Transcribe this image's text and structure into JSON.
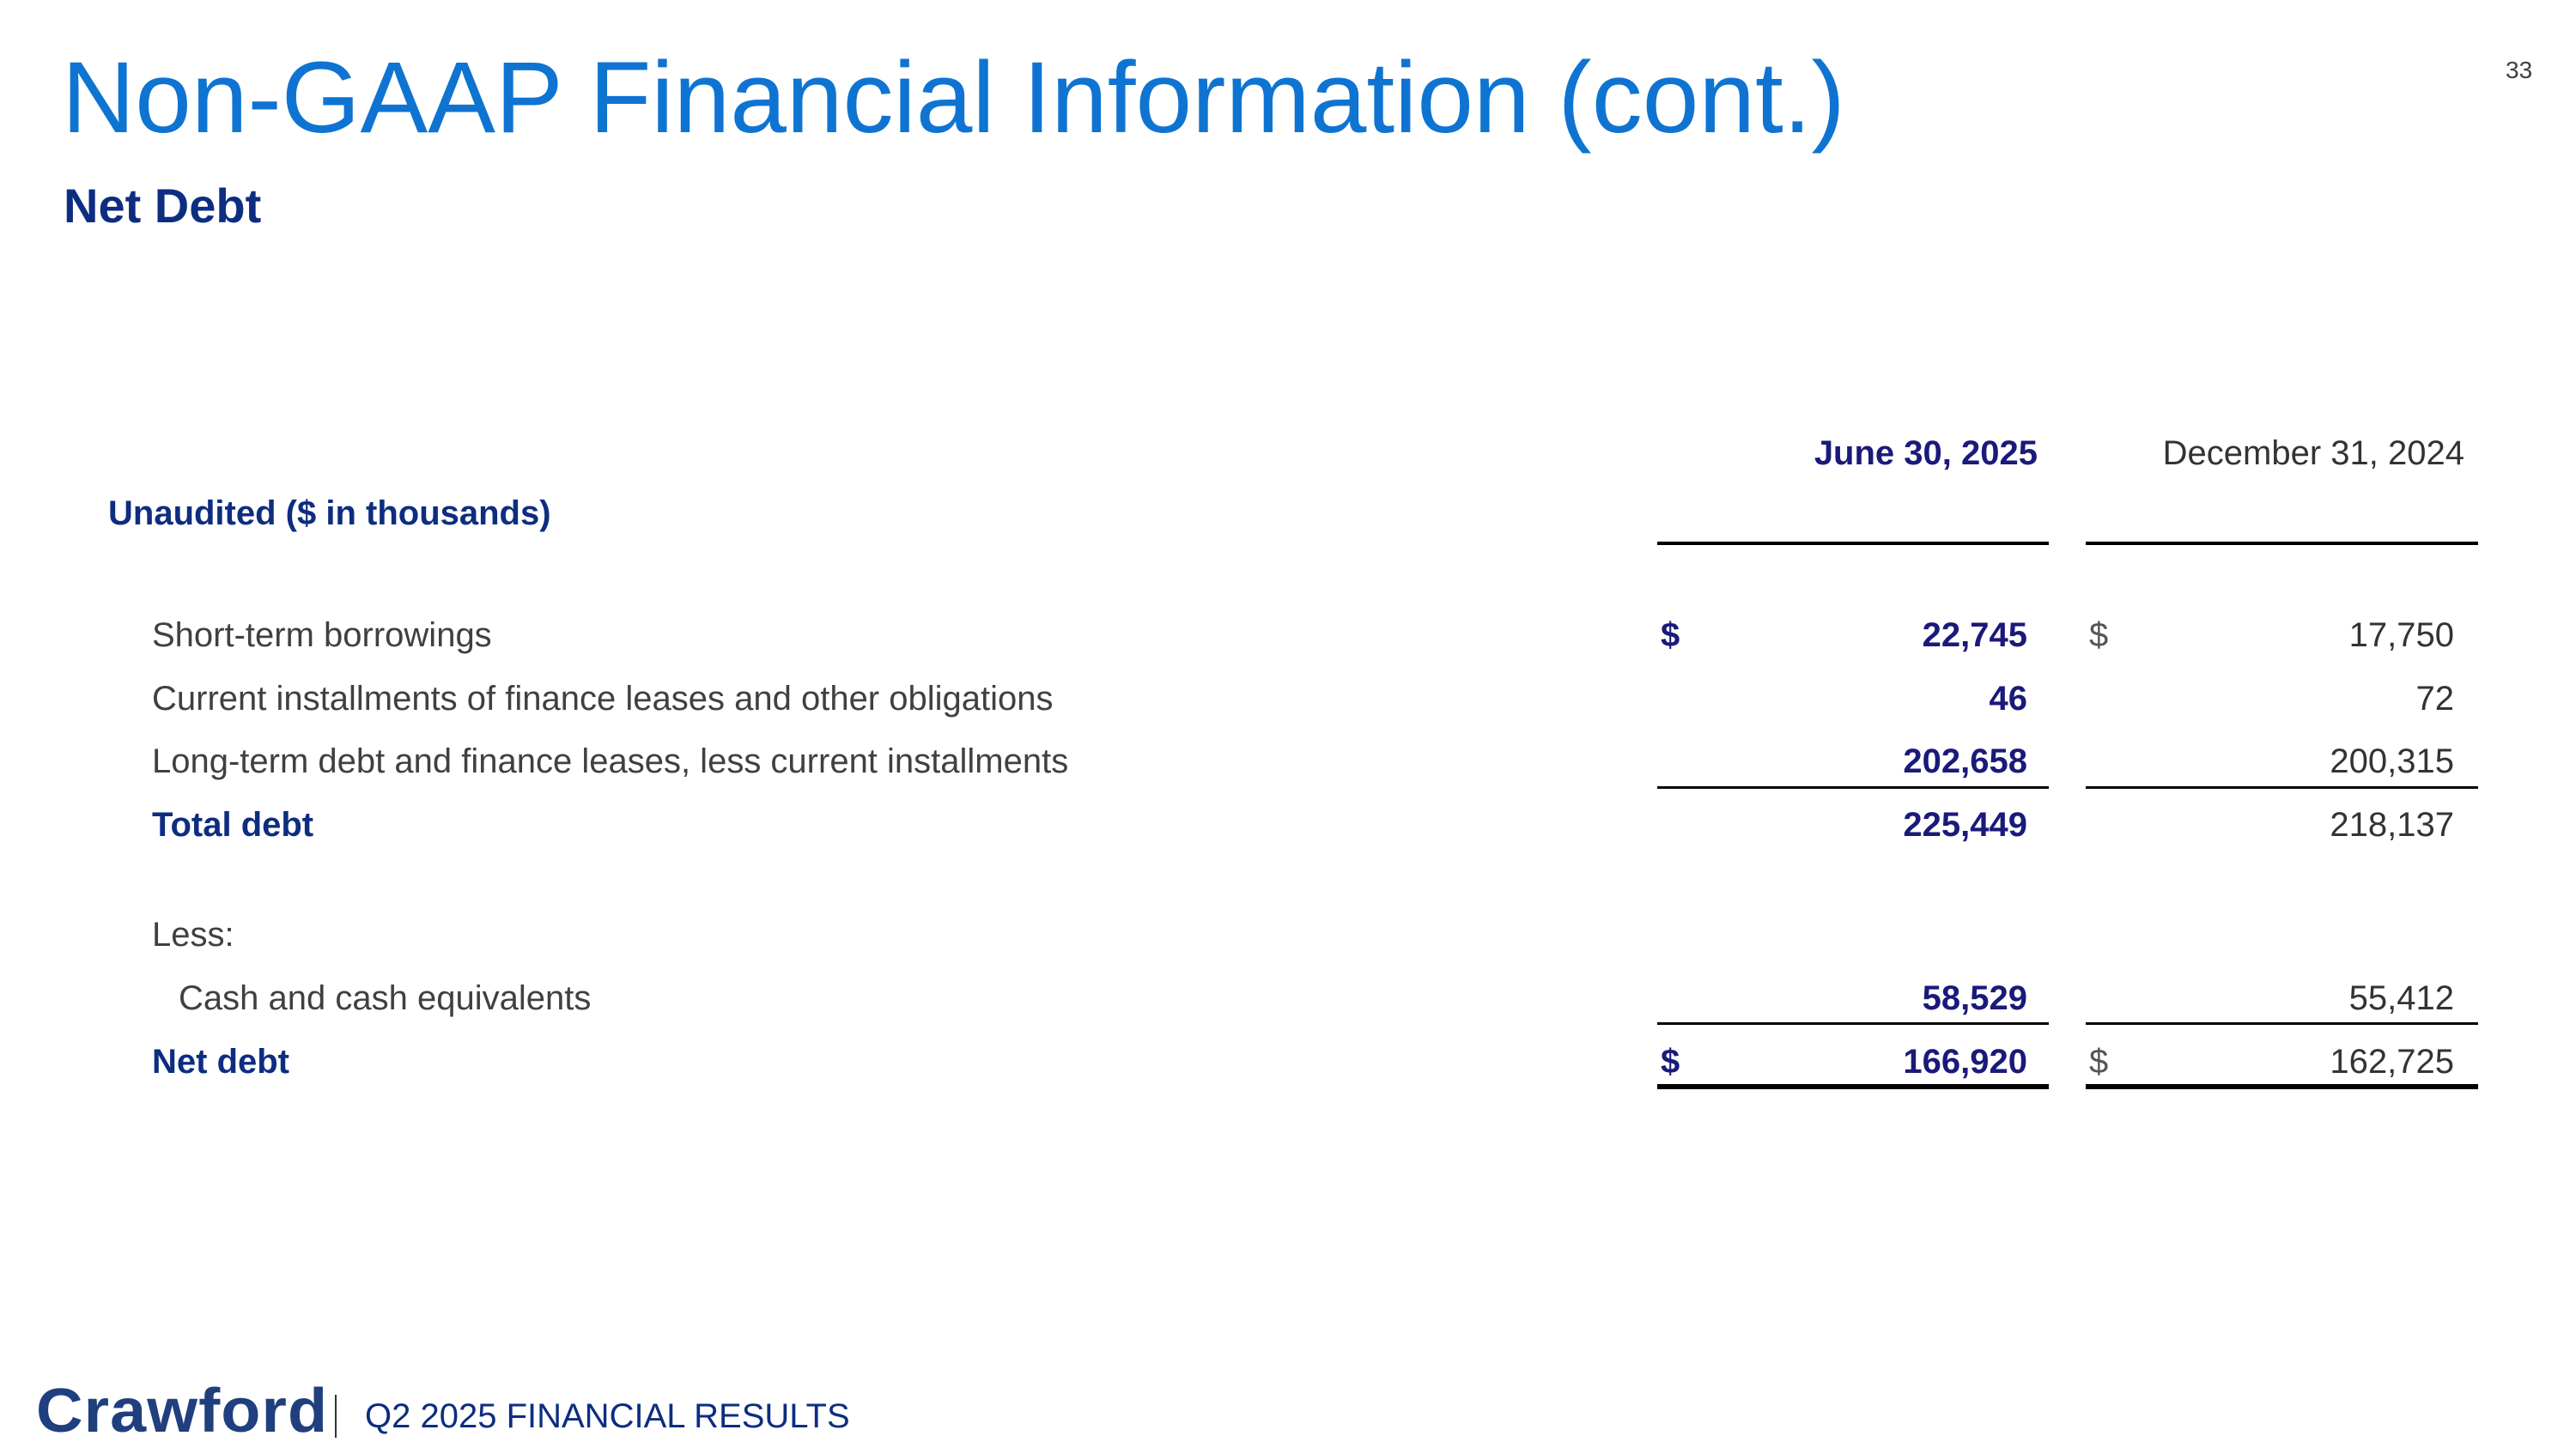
{
  "header": {
    "title": "Non-GAAP Financial Information (cont.)",
    "subtitle": "Net Debt",
    "page_number": "33"
  },
  "table": {
    "caption": "Unaudited ($ in thousands)",
    "columns": [
      "June 30, 2025",
      "December 31, 2024"
    ],
    "rows": [
      {
        "label": "Short-term borrowings",
        "dollar1": "$",
        "v1": "22,745",
        "dollar2": "$",
        "v2": "17,750"
      },
      {
        "label": "Current installments of finance leases and other obligations",
        "v1": "46",
        "v2": "72"
      },
      {
        "label": "Long-term debt and finance leases, less current installments",
        "v1": "202,658",
        "v2": "200,315"
      },
      {
        "label": "Total debt",
        "v1": "225,449",
        "v2": "218,137"
      },
      {
        "label": "Less:"
      },
      {
        "label": "Cash and cash equivalents",
        "v1": "58,529",
        "v2": "55,412"
      },
      {
        "label": "Net debt",
        "dollar1": "$",
        "v1": "166,920",
        "dollar2": "$",
        "v2": "162,725"
      }
    ]
  },
  "footer": {
    "logo": "Crawford",
    "text": "Q2 2025 FINANCIAL RESULTS"
  },
  "colors": {
    "title": "#0f74d1",
    "navy": "#0d2d80",
    "value_bold": "#1a1a7a"
  }
}
